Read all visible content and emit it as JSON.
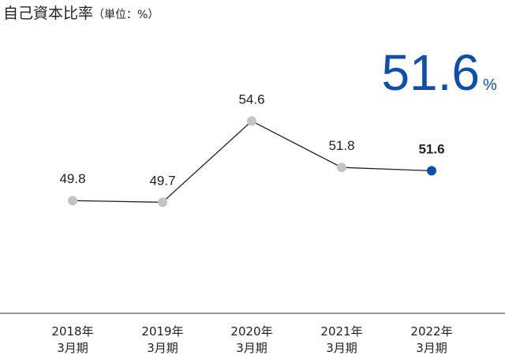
{
  "title": "自己資本比率",
  "unit_label": "（単位：%）",
  "highlight": {
    "value": "51.6",
    "unit": "%",
    "color": "#0f4fa8"
  },
  "colors": {
    "past": "#c4c4c4",
    "latest": "#0f4fa8",
    "line": "#222222",
    "text": "#222222"
  },
  "chart_data": {
    "type": "line",
    "title": "自己資本比率",
    "ylabel": "単位：%",
    "categories": [
      "2018年 3月期",
      "2019年 3月期",
      "2020年 3月期",
      "2021年 3月期",
      "2022年 3月期"
    ],
    "category_lines": [
      [
        "2018年",
        "3月期"
      ],
      [
        "2019年",
        "3月期"
      ],
      [
        "2020年",
        "3月期"
      ],
      [
        "2021年",
        "3月期"
      ],
      [
        "2022年",
        "3月期"
      ]
    ],
    "values": [
      49.8,
      49.7,
      54.6,
      51.8,
      51.6
    ],
    "value_labels": [
      "49.8",
      "49.7",
      "54.6",
      "51.8",
      "51.6"
    ],
    "ylim": [
      40,
      60
    ],
    "grid": false,
    "legend": "none"
  }
}
